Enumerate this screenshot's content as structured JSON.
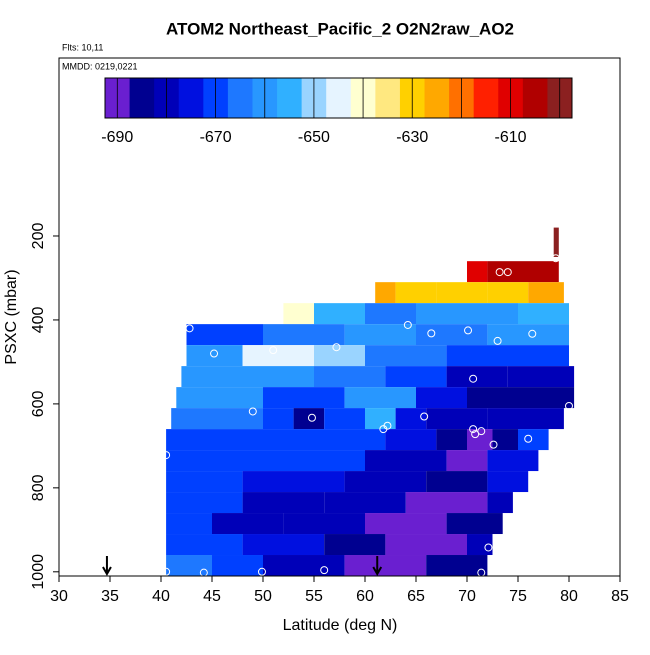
{
  "chart_data": {
    "type": "curtain",
    "title": "ATOM2 Northeast_Pacific_2 O2N2raw_AO2",
    "flights": "Flts: 10,11",
    "dates": "MMDD: 0219,0221",
    "x_label": "Latitude (deg N)",
    "y_label": "PSXC (mbar)",
    "xlim": [
      30,
      85
    ],
    "xticks": [
      30,
      35,
      40,
      45,
      50,
      55,
      60,
      65,
      70,
      75,
      80,
      85
    ],
    "ylim": [
      1010,
      -224
    ],
    "yticks": [
      200,
      400,
      600,
      800,
      1000
    ],
    "colorbar": {
      "lim": [
        -692.5,
        -597.5
      ],
      "ticks": [
        -690,
        -670,
        -650,
        -630,
        -610
      ],
      "colors": [
        "#6a1fd0",
        "#000090",
        "#0000b8",
        "#0010e0",
        "#0040ff",
        "#1e78ff",
        "#2897ff",
        "#30b0ff",
        "#9ad4ff",
        "#e6f4ff",
        "#ffffd0",
        "#ffe880",
        "#ffd000",
        "#ffa800",
        "#ff7000",
        "#ff2000",
        "#e00000",
        "#b00000",
        "#8b2020"
      ]
    },
    "rows": [
      {
        "p": [
          180,
          250
        ],
        "cells": [
          [
            78.5,
            79,
            -598
          ]
        ]
      },
      {
        "p": [
          260,
          310
        ],
        "cells": [
          [
            70,
            72,
            -608
          ],
          [
            72,
            79,
            -605
          ]
        ]
      },
      {
        "p": [
          310,
          360
        ],
        "cells": [
          [
            61,
            63,
            -623
          ],
          [
            63,
            67,
            -628
          ],
          [
            67,
            72,
            -632
          ],
          [
            72,
            76,
            -628
          ],
          [
            76,
            79.5,
            -625
          ]
        ]
      },
      {
        "p": [
          360,
          410
        ],
        "cells": [
          [
            52,
            55,
            -641
          ],
          [
            55,
            60,
            -655
          ],
          [
            60,
            65,
            -664
          ],
          [
            65,
            70,
            -660
          ],
          [
            70,
            75,
            -662
          ],
          [
            75,
            80,
            -656
          ]
        ]
      },
      {
        "p": [
          410,
          460
        ],
        "cells": [
          [
            42.5,
            50,
            -670
          ],
          [
            50,
            58,
            -664
          ],
          [
            58,
            65,
            -660
          ],
          [
            65,
            72,
            -667
          ],
          [
            72,
            80,
            -662
          ]
        ]
      },
      {
        "p": [
          460,
          510
        ],
        "cells": [
          [
            42.5,
            48,
            -660
          ],
          [
            48,
            55,
            -647
          ],
          [
            55,
            60,
            -652
          ],
          [
            60,
            68,
            -664
          ],
          [
            68,
            80,
            -668
          ]
        ]
      },
      {
        "p": [
          510,
          560
        ],
        "cells": [
          [
            42,
            55,
            -660
          ],
          [
            55,
            62,
            -666
          ],
          [
            62,
            68,
            -672
          ],
          [
            68,
            74,
            -682
          ],
          [
            74,
            80.5,
            -679
          ]
        ]
      },
      {
        "p": [
          560,
          610
        ],
        "cells": [
          [
            41.5,
            50,
            -662
          ],
          [
            50,
            58,
            -668
          ],
          [
            58,
            65,
            -660
          ],
          [
            65,
            70,
            -676
          ],
          [
            70,
            80.5,
            -684
          ]
        ]
      },
      {
        "p": [
          610,
          660
        ],
        "cells": [
          [
            41,
            50,
            -666
          ],
          [
            50,
            53,
            -672
          ],
          [
            53,
            56,
            -683
          ],
          [
            56,
            60,
            -670
          ],
          [
            60,
            63,
            -653
          ],
          [
            63,
            66,
            -673
          ],
          [
            66,
            72,
            -682
          ],
          [
            72,
            79.5,
            -678
          ]
        ]
      },
      {
        "p": [
          660,
          710
        ],
        "cells": [
          [
            40.5,
            55,
            -672
          ],
          [
            55,
            62,
            -668
          ],
          [
            62,
            67,
            -676
          ],
          [
            67,
            70,
            -684
          ],
          [
            70,
            72.5,
            -692
          ],
          [
            72.5,
            75,
            -683
          ],
          [
            75,
            78,
            -672
          ]
        ]
      },
      {
        "p": [
          710,
          760
        ],
        "cells": [
          [
            40.5,
            50,
            -670
          ],
          [
            50,
            60,
            -672
          ],
          [
            60,
            68,
            -678
          ],
          [
            68,
            72,
            -688
          ],
          [
            72,
            77,
            -676
          ]
        ]
      },
      {
        "p": [
          760,
          810
        ],
        "cells": [
          [
            40.5,
            48,
            -668
          ],
          [
            48,
            58,
            -674
          ],
          [
            58,
            66,
            -680
          ],
          [
            66,
            72,
            -687
          ],
          [
            72,
            76,
            -677
          ]
        ]
      },
      {
        "p": [
          810,
          860
        ],
        "cells": [
          [
            40.5,
            48,
            -672
          ],
          [
            48,
            56,
            -678
          ],
          [
            56,
            64,
            -682
          ],
          [
            64,
            72,
            -688
          ],
          [
            72,
            74.5,
            -678
          ]
        ]
      },
      {
        "p": [
          860,
          910
        ],
        "cells": [
          [
            40.5,
            45,
            -670
          ],
          [
            45,
            52,
            -678
          ],
          [
            52,
            60,
            -682
          ],
          [
            60,
            68,
            -688
          ],
          [
            68,
            73.5,
            -684
          ]
        ]
      },
      {
        "p": [
          910,
          960
        ],
        "cells": [
          [
            40.5,
            48,
            -668
          ],
          [
            48,
            56,
            -675
          ],
          [
            56,
            62,
            -684
          ],
          [
            62,
            70,
            -688
          ],
          [
            70,
            72.5,
            -680
          ]
        ]
      },
      {
        "p": [
          960,
          1010
        ],
        "cells": [
          [
            40.5,
            45,
            -666
          ],
          [
            45,
            50,
            -672
          ],
          [
            50,
            58,
            -680
          ],
          [
            58,
            66,
            -688
          ],
          [
            66,
            72,
            -686
          ]
        ]
      }
    ],
    "samples": [
      [
        42.8,
        420
      ],
      [
        45.2,
        480
      ],
      [
        51,
        472
      ],
      [
        57.2,
        465
      ],
      [
        64.2,
        412
      ],
      [
        66.5,
        432
      ],
      [
        70.1,
        425
      ],
      [
        73,
        450
      ],
      [
        76.4,
        433
      ],
      [
        78.7,
        253
      ],
      [
        73.2,
        286
      ],
      [
        74,
        286
      ],
      [
        70.6,
        540
      ],
      [
        49,
        618
      ],
      [
        54.8,
        633
      ],
      [
        61.8,
        660
      ],
      [
        62.2,
        652
      ],
      [
        65.8,
        630
      ],
      [
        70.6,
        660
      ],
      [
        70.8,
        672
      ],
      [
        71.4,
        665
      ],
      [
        72.6,
        697
      ],
      [
        76,
        683
      ],
      [
        80,
        605
      ],
      [
        40.5,
        722
      ],
      [
        72.1,
        942
      ],
      [
        40.5,
        1000
      ],
      [
        44.2,
        1002
      ],
      [
        49.9,
        1000
      ],
      [
        56,
        996
      ],
      [
        71.4,
        1002
      ]
    ],
    "arrows": [
      34.7,
      61.2
    ]
  }
}
